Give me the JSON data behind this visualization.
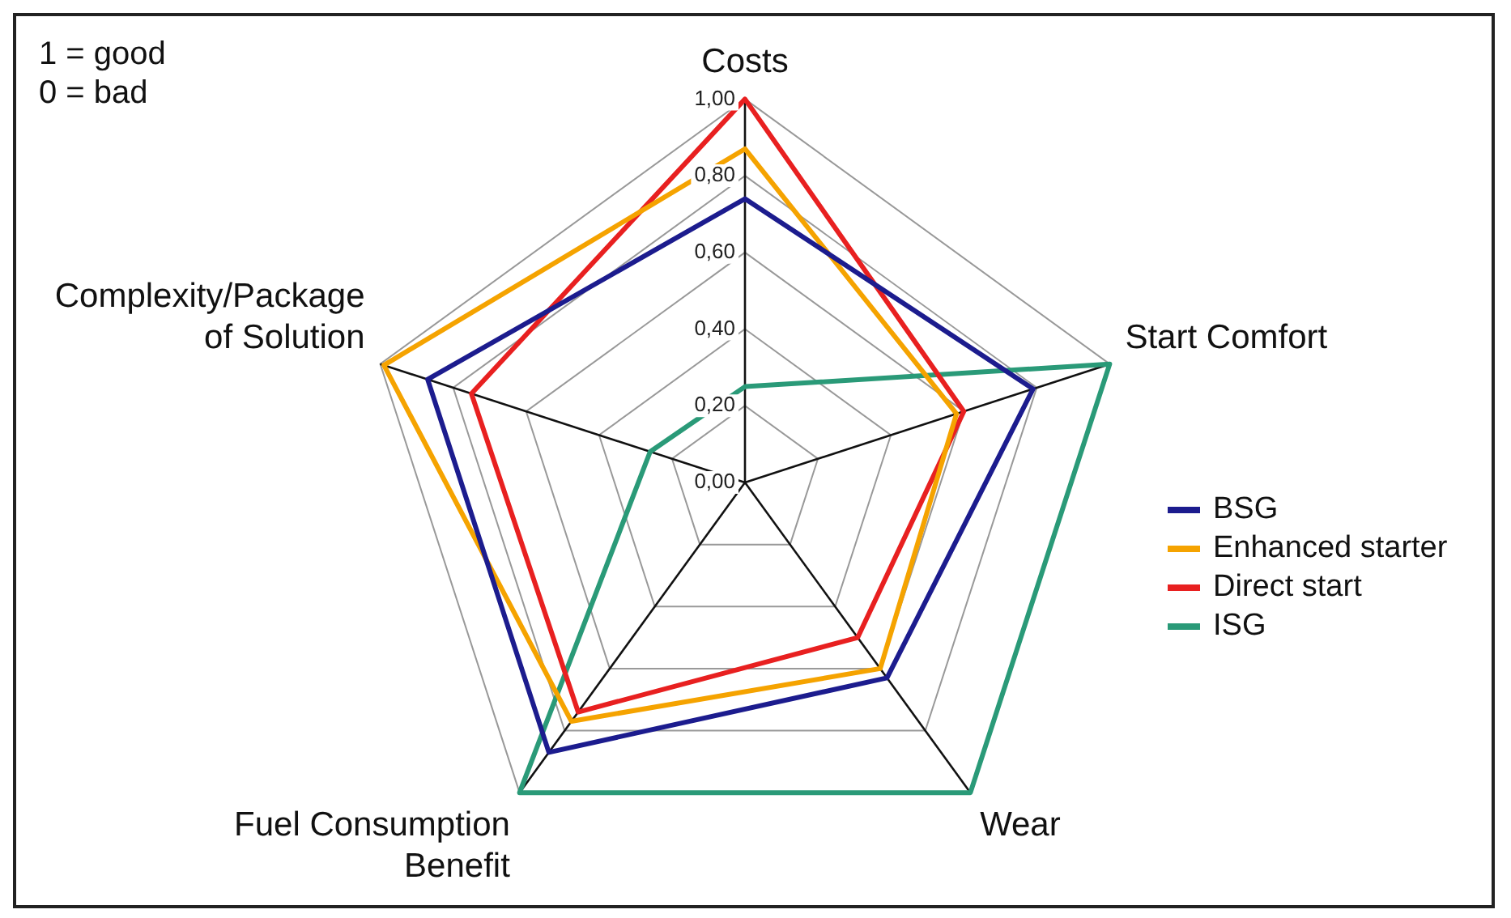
{
  "chart_data": {
    "type": "radar",
    "categories": [
      "Costs",
      "Start Comfort",
      "Wear",
      "Fuel Consumption Benefit",
      "Complexity/Package of Solution"
    ],
    "series": [
      {
        "name": "BSG",
        "color": "#1c1c8e",
        "values": [
          0.74,
          0.79,
          0.63,
          0.87,
          0.87
        ]
      },
      {
        "name": "Enhanced starter",
        "color": "#f5a300",
        "values": [
          0.87,
          0.58,
          0.6,
          0.77,
          0.99
        ]
      },
      {
        "name": "Direct start",
        "color": "#e82020",
        "values": [
          1.0,
          0.6,
          0.5,
          0.74,
          0.75
        ]
      },
      {
        "name": "ISG",
        "color": "#2a9a78",
        "values": [
          0.25,
          1.0,
          1.0,
          1.0,
          0.26
        ]
      }
    ],
    "ylim": [
      0,
      1
    ],
    "yticks": [
      {
        "value": 0,
        "label": "0,00"
      },
      {
        "value": 0.2,
        "label": "0,20"
      },
      {
        "value": 0.4,
        "label": "0,40"
      },
      {
        "value": 0.6,
        "label": "0,60"
      },
      {
        "value": 0.8,
        "label": "0,80"
      },
      {
        "value": 1,
        "label": "1,00"
      }
    ],
    "grid": true,
    "legend": "right",
    "marker": "none",
    "line_style": "solid",
    "annotations": [
      "1 = good",
      "0 = bad"
    ]
  }
}
